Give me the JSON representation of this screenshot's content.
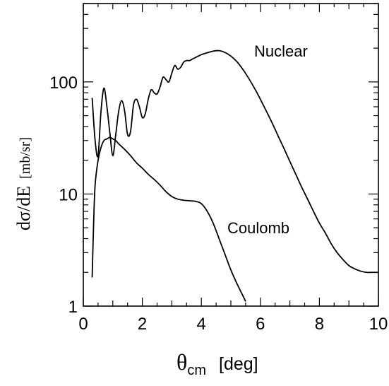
{
  "chart_data": {
    "type": "line",
    "xlabel_symbol": "θ",
    "xlabel_sub": "cm",
    "xlabel_unit": "[deg]",
    "ylabel_main": "dσ/dE",
    "ylabel_unit": "[mb/sr]",
    "xlim": [
      0,
      10
    ],
    "ylim": [
      1,
      500
    ],
    "yscale": "log",
    "x_ticks": [
      0,
      2,
      4,
      6,
      8,
      10
    ],
    "x_tick_labels": [
      "0",
      "2",
      "4",
      "6",
      "8",
      "10"
    ],
    "y_ticks": [
      1,
      10,
      100
    ],
    "y_tick_labels": [
      "1",
      "10",
      "100"
    ],
    "grid": false,
    "series": [
      {
        "name": "Nuclear",
        "x": [
          0.3,
          0.4,
          0.5,
          0.6,
          0.7,
          0.8,
          0.9,
          1.0,
          1.1,
          1.2,
          1.3,
          1.4,
          1.5,
          1.6,
          1.7,
          1.8,
          1.9,
          2.0,
          2.1,
          2.2,
          2.3,
          2.4,
          2.5,
          2.6,
          2.7,
          2.8,
          2.9,
          3.0,
          3.1,
          3.2,
          3.3,
          3.4,
          3.5,
          3.6,
          3.7,
          3.8,
          3.9,
          4.0,
          4.2,
          4.4,
          4.6,
          4.8,
          5.0,
          5.2,
          5.4,
          5.6,
          5.8,
          6.0,
          6.2,
          6.4,
          6.6,
          6.8,
          7.0,
          7.2,
          7.4,
          7.6,
          7.8,
          8.0,
          8.2,
          8.4,
          8.6,
          8.8,
          9.0,
          9.2,
          9.4,
          9.6,
          9.8,
          10.0
        ],
        "y": [
          72,
          30,
          22,
          55,
          88,
          60,
          35,
          22,
          34,
          55,
          68,
          55,
          34,
          36,
          62,
          70,
          60,
          48,
          52,
          70,
          85,
          80,
          78,
          90,
          110,
          105,
          100,
          120,
          140,
          130,
          135,
          150,
          155,
          155,
          160,
          165,
          170,
          175,
          182,
          188,
          190,
          183,
          170,
          152,
          130,
          108,
          88,
          70,
          55,
          43,
          33,
          25.5,
          19.5,
          15,
          11.5,
          9,
          7,
          5.5,
          4.5,
          3.6,
          3.0,
          2.6,
          2.3,
          2.15,
          2.05,
          2.0,
          2.0,
          2.0
        ],
        "label": "Nuclear"
      },
      {
        "name": "Coulomb",
        "x": [
          0.3,
          0.35,
          0.4,
          0.5,
          0.6,
          0.7,
          0.8,
          0.9,
          1.0,
          1.1,
          1.2,
          1.4,
          1.6,
          1.8,
          2.0,
          2.2,
          2.4,
          2.6,
          2.8,
          3.0,
          3.2,
          3.4,
          3.6,
          3.8,
          4.0,
          4.2,
          4.4,
          4.6,
          4.8,
          5.0,
          5.2,
          5.4,
          5.5
        ],
        "y": [
          1.8,
          5.5,
          12,
          20,
          26,
          30,
          31,
          32,
          31,
          30,
          28,
          25,
          22,
          19,
          17,
          15,
          13.5,
          12,
          10.5,
          9.5,
          9,
          8.8,
          8.7,
          8.6,
          8.2,
          7.0,
          5.5,
          4.0,
          2.9,
          2.1,
          1.6,
          1.25,
          1.1
        ],
        "label": "Coulomb"
      }
    ]
  }
}
